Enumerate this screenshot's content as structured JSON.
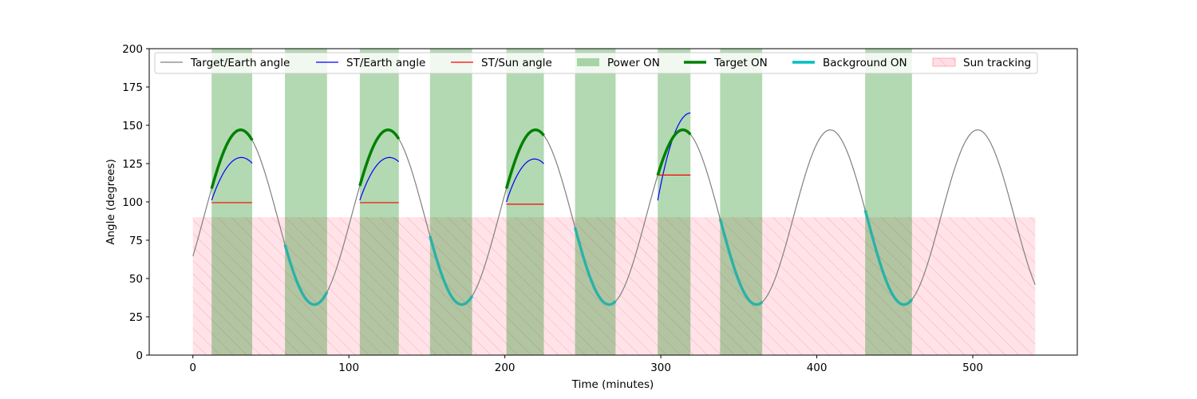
{
  "chart_data": {
    "type": "line",
    "title": "",
    "xlabel": "Time (minutes)",
    "ylabel": "Angle (degrees)",
    "xlim": [
      -28,
      567
    ],
    "ylim": [
      0,
      200
    ],
    "xticks": [
      0,
      100,
      200,
      300,
      400,
      500
    ],
    "yticks": [
      0,
      25,
      50,
      75,
      100,
      125,
      150,
      175,
      200
    ],
    "grid": false,
    "legend_position": "top",
    "legend": [
      {
        "label": "Target/Earth angle",
        "kind": "line",
        "color": "#808080"
      },
      {
        "label": "ST/Earth angle",
        "kind": "line",
        "color": "#0000ff"
      },
      {
        "label": "ST/Sun angle",
        "kind": "line",
        "color": "#ff0000"
      },
      {
        "label": "Power ON",
        "kind": "patch",
        "color": "#008000"
      },
      {
        "label": "Target ON",
        "kind": "thickline",
        "color": "#008000"
      },
      {
        "label": "Background ON",
        "kind": "thickline",
        "color": "#00bfbf"
      },
      {
        "label": "Sun tracking",
        "kind": "hatch",
        "color": "#ffb6c1"
      }
    ],
    "target_earth": {
      "color": "#808080",
      "period_minutes": 94.5,
      "mean": 90,
      "amplitude": 57,
      "peak_time": 30.6,
      "x_range": [
        0,
        540
      ]
    },
    "power_on": [
      [
        12,
        38
      ],
      [
        59,
        86
      ],
      [
        107,
        132
      ],
      [
        152,
        179
      ],
      [
        201,
        225
      ],
      [
        245,
        271
      ],
      [
        298,
        319
      ],
      [
        338,
        365
      ],
      [
        431,
        461
      ]
    ],
    "sun_tracking": {
      "y_range": [
        0,
        90
      ],
      "x_range": [
        0,
        540
      ]
    },
    "target_on": [
      [
        12,
        38
      ],
      [
        107,
        132
      ],
      [
        201,
        225
      ],
      [
        298,
        319
      ]
    ],
    "background_on": [
      [
        59,
        86
      ],
      [
        152,
        179
      ],
      [
        245,
        271
      ],
      [
        338,
        365
      ],
      [
        431,
        461
      ]
    ],
    "st_earth": [
      {
        "x_range": [
          12,
          38
        ],
        "peak_time": 31,
        "peak": 129,
        "start": 101
      },
      {
        "x_range": [
          107,
          132
        ],
        "peak_time": 126,
        "peak": 129,
        "start": 101
      },
      {
        "x_range": [
          201,
          225
        ],
        "peak_time": 219,
        "peak": 128,
        "start": 100
      },
      {
        "x_range": [
          298,
          319
        ],
        "peak_time": 319,
        "peak": 158,
        "start": 101
      }
    ],
    "st_sun": [
      {
        "x_range": [
          12,
          38
        ],
        "value": 99.5
      },
      {
        "x_range": [
          107,
          132
        ],
        "value": 99.5
      },
      {
        "x_range": [
          201,
          225
        ],
        "value": 98.5
      },
      {
        "x_range": [
          298,
          319
        ],
        "value": 117.5
      }
    ],
    "colors": {
      "power_on": "#008000",
      "target_on": "#008000",
      "background_on": "#20b2aa",
      "st_earth": "#0000ff",
      "st_sun": "#ff0000",
      "sun_tracking_fill": "#ffc0cb",
      "sun_tracking_hatch": "#ff9aa8"
    }
  }
}
